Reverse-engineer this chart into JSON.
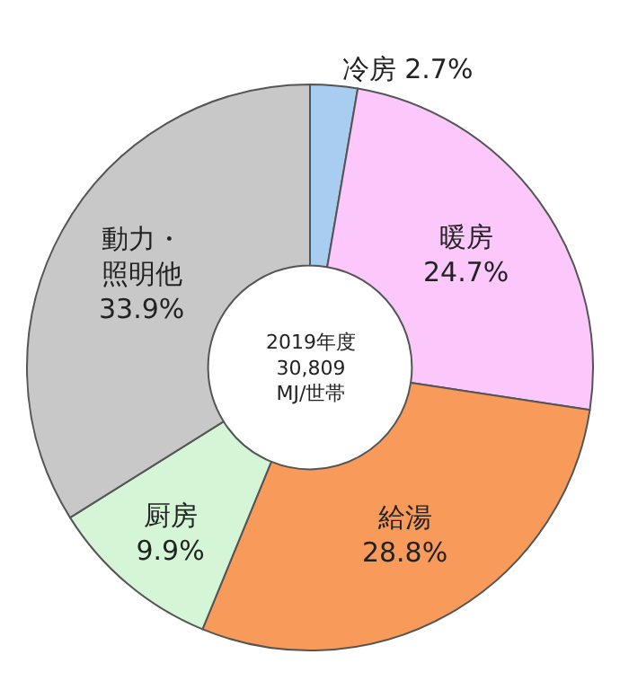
{
  "chart_data": {
    "type": "donut",
    "categories": [
      "冷房",
      "暖房",
      "給湯",
      "厨房",
      "動力・照明他"
    ],
    "values": [
      2.7,
      24.7,
      28.8,
      9.9,
      33.9
    ],
    "colors": [
      "#a8cdf0",
      "#fcc8fc",
      "#f79a5a",
      "#d4f5d6",
      "#c8c8c8"
    ],
    "value_labels": [
      "2.7%",
      "24.7%",
      "28.8%",
      "9.9%",
      "33.9%"
    ],
    "annotations": [
      "2019年度\n30,809\nMJ/世帯"
    ],
    "legend": false
  }
}
